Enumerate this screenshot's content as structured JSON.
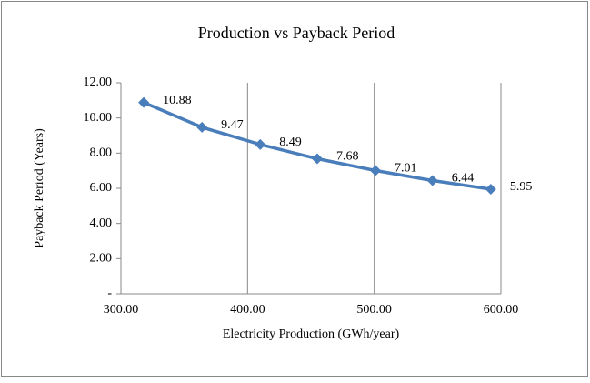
{
  "chart_data": {
    "type": "line",
    "title": "Production vs Payback Period",
    "x_label": "Electricity Production (GWh/year)",
    "y_label": "Payback Period  (Years)",
    "x": [
      318,
      364,
      410,
      455,
      501,
      546,
      592
    ],
    "series": [
      {
        "name": "Payback Period",
        "color": "#4a7ebb",
        "values": [
          10.88,
          9.47,
          8.49,
          7.68,
          7.01,
          6.44,
          5.95
        ]
      }
    ],
    "xlim": [
      300,
      600
    ],
    "xticks": [
      {
        "value": 300,
        "label": "300.00"
      },
      {
        "value": 400,
        "label": "400.00"
      },
      {
        "value": 500,
        "label": "500.00"
      },
      {
        "value": 600,
        "label": "600.00"
      }
    ],
    "ylim": [
      0,
      12
    ],
    "yticks": [
      {
        "value": 0,
        "label": "-"
      },
      {
        "value": 2,
        "label": "2.00"
      },
      {
        "value": 4,
        "label": "4.00"
      },
      {
        "value": 6,
        "label": "6.00"
      },
      {
        "value": 8,
        "label": "8.00"
      },
      {
        "value": 10,
        "label": "10.00"
      },
      {
        "value": 12,
        "label": "12.00"
      }
    ],
    "grid": "x"
  }
}
